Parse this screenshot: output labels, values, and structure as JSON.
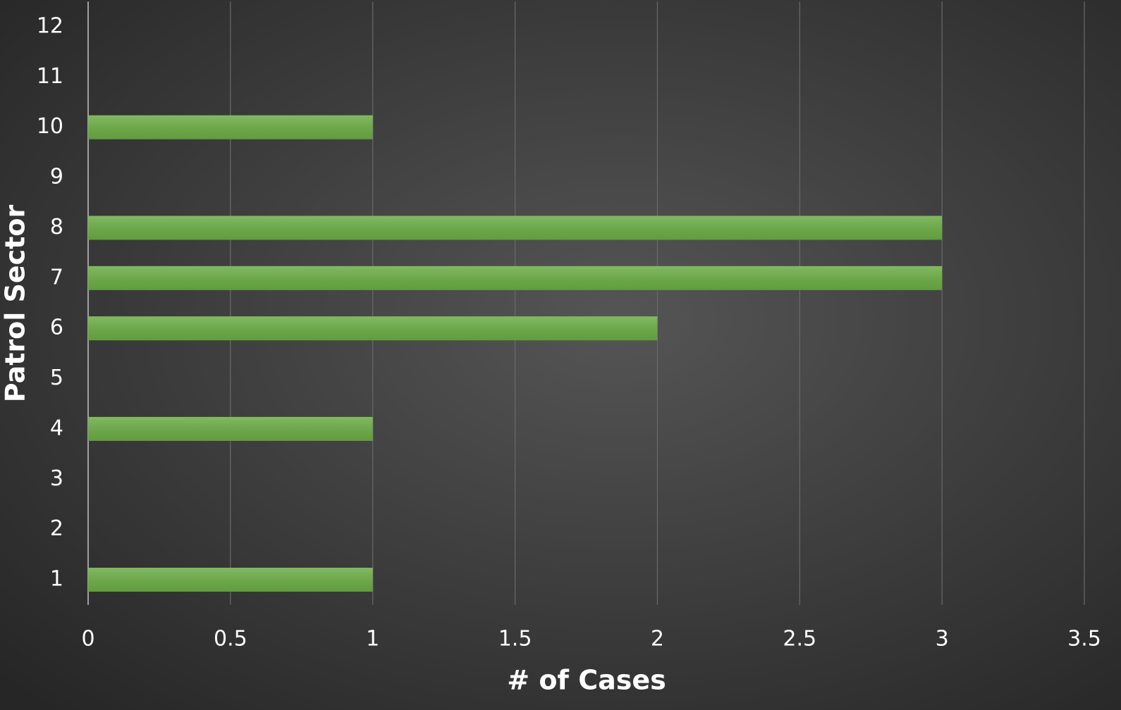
{
  "chart_data": {
    "type": "hbar",
    "x_label": "# of Cases",
    "y_label": "Patrol Sector",
    "categories": [
      "1",
      "2",
      "3",
      "4",
      "5",
      "6",
      "7",
      "8",
      "9",
      "10",
      "11",
      "12"
    ],
    "values": [
      1,
      0,
      0,
      1,
      0,
      2,
      3,
      3,
      0,
      1,
      0,
      0
    ],
    "color": "#6cae45",
    "xlim": [
      0,
      3.5
    ],
    "xticks": [
      0,
      0.5,
      1,
      1.5,
      2,
      2.5,
      3,
      3.5
    ],
    "grid": true
  }
}
